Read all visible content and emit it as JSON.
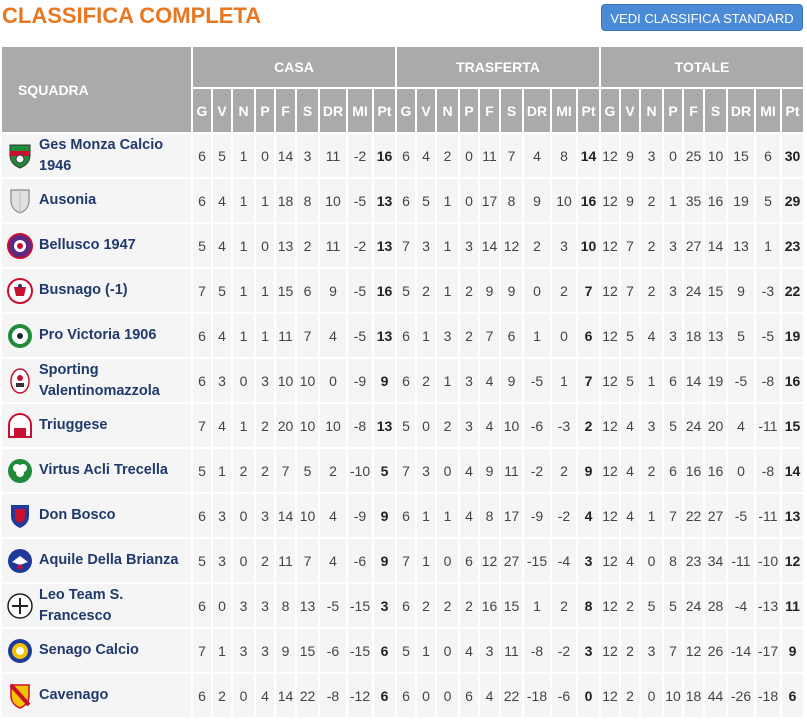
{
  "title": "CLASSIFICA COMPLETA",
  "standard_button": "VEDI CLASSIFICA STANDARD",
  "header": {
    "team_col": "SQUADRA",
    "groups": [
      "CASA",
      "TRASFERTA",
      "TOTALE"
    ],
    "cols": [
      "G",
      "V",
      "N",
      "P",
      "F",
      "S",
      "DR",
      "MI",
      "Pt"
    ]
  },
  "colors": {
    "title": "#e87722",
    "button": "#4a8ad6",
    "header_bg": "#aaaaaa",
    "row_bg": "#f5f5f5",
    "team_name": "#1f3a6b"
  },
  "rows": [
    {
      "team": "Ges Monza Calcio 1946",
      "crest": "green-red-shield",
      "casa": [
        "6",
        "5",
        "1",
        "0",
        "14",
        "3",
        "11",
        "-2",
        "16"
      ],
      "trasferta": [
        "6",
        "4",
        "2",
        "0",
        "11",
        "7",
        "4",
        "8",
        "14"
      ],
      "totale": [
        "12",
        "9",
        "3",
        "0",
        "25",
        "10",
        "15",
        "6",
        "30"
      ]
    },
    {
      "team": "Ausonia",
      "crest": "grey-shield",
      "casa": [
        "6",
        "4",
        "1",
        "1",
        "18",
        "8",
        "10",
        "-5",
        "13"
      ],
      "trasferta": [
        "6",
        "5",
        "1",
        "0",
        "17",
        "8",
        "9",
        "10",
        "16"
      ],
      "totale": [
        "12",
        "9",
        "2",
        "1",
        "35",
        "16",
        "19",
        "5",
        "29"
      ]
    },
    {
      "team": "Bellusco 1947",
      "crest": "purple-round-badge",
      "casa": [
        "5",
        "4",
        "1",
        "0",
        "13",
        "2",
        "11",
        "-2",
        "13"
      ],
      "trasferta": [
        "7",
        "3",
        "1",
        "3",
        "14",
        "12",
        "2",
        "3",
        "10"
      ],
      "totale": [
        "12",
        "7",
        "2",
        "3",
        "27",
        "14",
        "13",
        "1",
        "23"
      ]
    },
    {
      "team": "Busnago (-1)",
      "crest": "red-white-crest",
      "casa": [
        "7",
        "5",
        "1",
        "1",
        "15",
        "6",
        "9",
        "-5",
        "16"
      ],
      "trasferta": [
        "5",
        "2",
        "1",
        "2",
        "9",
        "9",
        "0",
        "2",
        "7"
      ],
      "totale": [
        "12",
        "7",
        "2",
        "3",
        "24",
        "15",
        "9",
        "-3",
        "22"
      ]
    },
    {
      "team": "Pro Victoria 1906",
      "crest": "green-ball-badge",
      "casa": [
        "6",
        "4",
        "1",
        "1",
        "11",
        "7",
        "4",
        "-5",
        "13"
      ],
      "trasferta": [
        "6",
        "1",
        "3",
        "2",
        "7",
        "6",
        "1",
        "0",
        "6"
      ],
      "totale": [
        "12",
        "5",
        "4",
        "3",
        "18",
        "13",
        "5",
        "-5",
        "19"
      ]
    },
    {
      "team": "Sporting Valentinomazzola",
      "crest": "red-white-oval",
      "casa": [
        "6",
        "3",
        "0",
        "3",
        "10",
        "10",
        "0",
        "-9",
        "9"
      ],
      "trasferta": [
        "6",
        "2",
        "1",
        "3",
        "4",
        "9",
        "-5",
        "1",
        "7"
      ],
      "totale": [
        "12",
        "5",
        "1",
        "6",
        "14",
        "19",
        "-5",
        "-8",
        "16"
      ]
    },
    {
      "team": "Triuggese",
      "crest": "red-white-arch",
      "casa": [
        "7",
        "4",
        "1",
        "2",
        "20",
        "10",
        "10",
        "-8",
        "13"
      ],
      "trasferta": [
        "5",
        "0",
        "2",
        "3",
        "4",
        "10",
        "-6",
        "-3",
        "2"
      ],
      "totale": [
        "12",
        "4",
        "3",
        "5",
        "24",
        "20",
        "4",
        "-11",
        "15"
      ]
    },
    {
      "team": "Virtus Acli Trecella",
      "crest": "green-clover-badge",
      "casa": [
        "5",
        "1",
        "2",
        "2",
        "7",
        "5",
        "2",
        "-10",
        "5"
      ],
      "trasferta": [
        "7",
        "3",
        "0",
        "4",
        "9",
        "11",
        "-2",
        "2",
        "9"
      ],
      "totale": [
        "12",
        "4",
        "2",
        "6",
        "16",
        "16",
        "0",
        "-8",
        "14"
      ]
    },
    {
      "team": "Don Bosco",
      "crest": "blue-red-shield",
      "casa": [
        "6",
        "3",
        "0",
        "3",
        "14",
        "10",
        "4",
        "-9",
        "9"
      ],
      "trasferta": [
        "6",
        "1",
        "1",
        "4",
        "8",
        "17",
        "-9",
        "-2",
        "4"
      ],
      "totale": [
        "12",
        "4",
        "1",
        "7",
        "22",
        "27",
        "-5",
        "-11",
        "13"
      ]
    },
    {
      "team": "Aquile Della Brianza",
      "crest": "blue-eagle-badge",
      "casa": [
        "5",
        "3",
        "0",
        "2",
        "11",
        "7",
        "4",
        "-6",
        "9"
      ],
      "trasferta": [
        "7",
        "1",
        "0",
        "6",
        "12",
        "27",
        "-15",
        "-4",
        "3"
      ],
      "totale": [
        "12",
        "4",
        "0",
        "8",
        "23",
        "34",
        "-11",
        "-10",
        "12"
      ]
    },
    {
      "team": "Leo Team S. Francesco",
      "crest": "black-white-round",
      "casa": [
        "6",
        "0",
        "3",
        "3",
        "8",
        "13",
        "-5",
        "-15",
        "3"
      ],
      "trasferta": [
        "6",
        "2",
        "2",
        "2",
        "16",
        "15",
        "1",
        "2",
        "8"
      ],
      "totale": [
        "12",
        "2",
        "5",
        "5",
        "24",
        "28",
        "-4",
        "-13",
        "11"
      ]
    },
    {
      "team": "Senago Calcio",
      "crest": "blue-yellow-round",
      "casa": [
        "7",
        "1",
        "3",
        "3",
        "9",
        "15",
        "-6",
        "-15",
        "6"
      ],
      "trasferta": [
        "5",
        "1",
        "0",
        "4",
        "3",
        "11",
        "-8",
        "-2",
        "3"
      ],
      "totale": [
        "12",
        "2",
        "3",
        "7",
        "12",
        "26",
        "-14",
        "-17",
        "9"
      ]
    },
    {
      "team": "Cavenago",
      "crest": "red-yellow-shield",
      "casa": [
        "6",
        "2",
        "0",
        "4",
        "14",
        "22",
        "-8",
        "-12",
        "6"
      ],
      "trasferta": [
        "6",
        "0",
        "0",
        "6",
        "4",
        "22",
        "-18",
        "-6",
        "0"
      ],
      "totale": [
        "12",
        "2",
        "0",
        "10",
        "18",
        "44",
        "-26",
        "-18",
        "6"
      ]
    }
  ]
}
